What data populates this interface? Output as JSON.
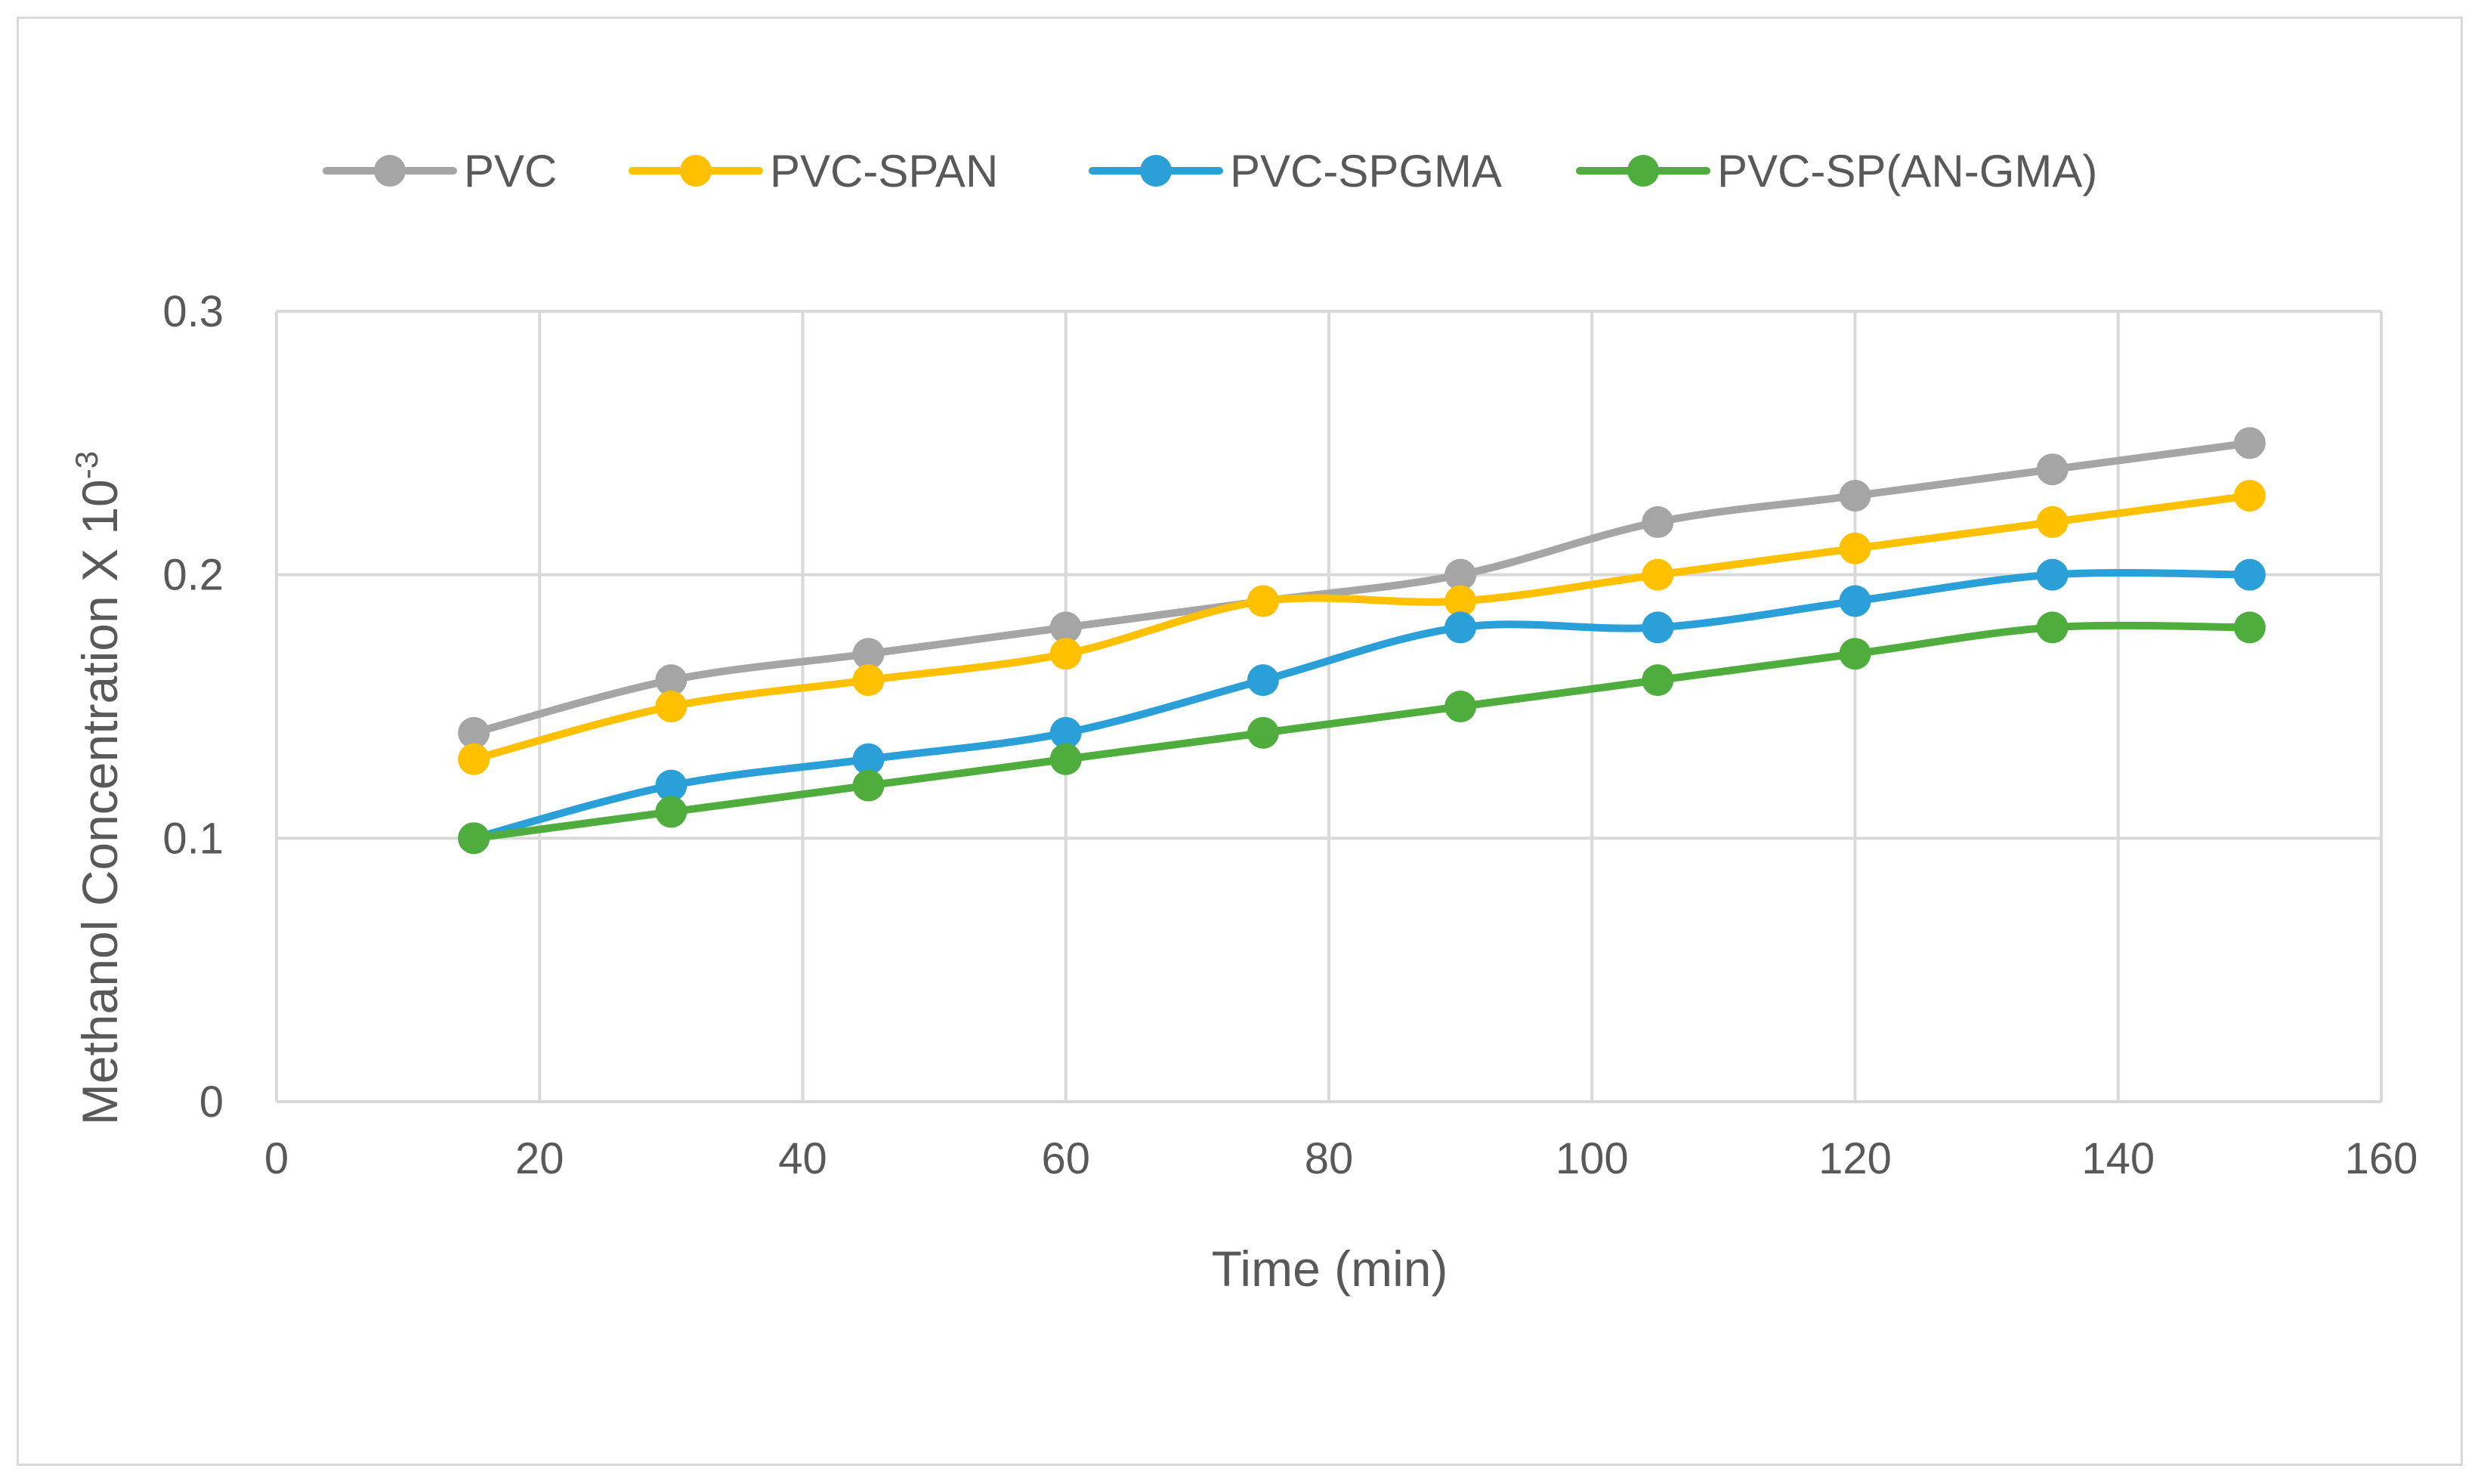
{
  "chart_data": {
    "type": "line",
    "title": "",
    "xlabel": "Time (min)",
    "ylabel_main": "Methanol Concentration X 10",
    "ylabel_exponent": "-3",
    "xlim": [
      0,
      160
    ],
    "ylim": [
      0,
      0.3
    ],
    "x_ticks": [
      0,
      20,
      40,
      60,
      80,
      100,
      120,
      140,
      160
    ],
    "y_ticks": [
      0,
      0.1,
      0.2,
      0.3
    ],
    "y_tick_labels": [
      "0",
      "0.1",
      "0.2",
      "0.3"
    ],
    "grid": true,
    "legend_position": "top",
    "smooth": true,
    "x": [
      15,
      30,
      45,
      60,
      75,
      90,
      105,
      120,
      135,
      150
    ],
    "series": [
      {
        "name": "PVC",
        "color": "#a5a5a5",
        "values": [
          0.14,
          0.16,
          0.17,
          0.18,
          0.19,
          0.2,
          0.22,
          0.23,
          0.24,
          0.25
        ]
      },
      {
        "name": "PVC-SPAN",
        "color": "#ffc000",
        "values": [
          0.13,
          0.15,
          0.16,
          0.17,
          0.19,
          0.19,
          0.2,
          0.21,
          0.22,
          0.23
        ]
      },
      {
        "name": "PVC-SPGMA",
        "color": "#2a9fd8",
        "values": [
          0.1,
          0.12,
          0.13,
          0.14,
          0.16,
          0.18,
          0.18,
          0.19,
          0.2,
          0.2
        ]
      },
      {
        "name": "PVC-SP(AN-GMA)",
        "color": "#4ead3c",
        "values": [
          0.1,
          0.11,
          0.12,
          0.13,
          0.14,
          0.15,
          0.16,
          0.17,
          0.18,
          0.18
        ]
      }
    ]
  },
  "colors": {
    "gridline": "#d9d9d9",
    "axis_text": "#595959",
    "border": "#d9d9d9"
  }
}
